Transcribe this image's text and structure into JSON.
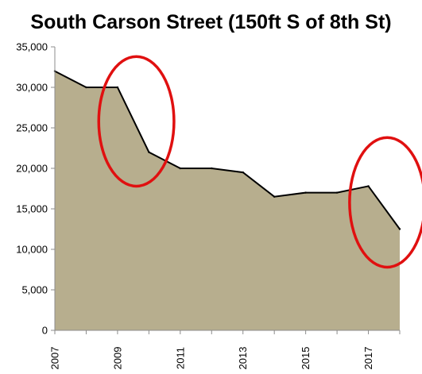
{
  "chart_data": {
    "type": "area",
    "title": "South Carson Street (150ft S of 8th St)",
    "xlabel": "",
    "ylabel": "",
    "x": [
      2007,
      2008,
      2009,
      2010,
      2011,
      2012,
      2013,
      2014,
      2015,
      2016,
      2017,
      2018
    ],
    "x_tick_labels": [
      "2007",
      "2009",
      "2011",
      "2013",
      "2015",
      "2017"
    ],
    "xlim": [
      2007,
      2018
    ],
    "series": [
      {
        "values": [
          32000,
          30000,
          30000,
          22000,
          20000,
          20000,
          19500,
          16500,
          17000,
          17000,
          17800,
          12500
        ]
      }
    ],
    "ylim": [
      0,
      35000
    ],
    "y_ticks": [
      0,
      5000,
      10000,
      15000,
      20000,
      25000,
      30000,
      35000
    ],
    "y_tick_labels": [
      "0",
      "5,000",
      "10,000",
      "15,000",
      "20,000",
      "25,000",
      "30,000",
      "35,000"
    ],
    "grid": false,
    "legend": "none",
    "fill_color": "#b7ae8e",
    "line_color": "#000000",
    "annotations": [
      {
        "shape": "ellipse",
        "color": "#e01010",
        "x_range": [
          2008.4,
          2010.8
        ],
        "y_range": [
          17800,
          33800
        ]
      },
      {
        "shape": "ellipse",
        "color": "#e01010",
        "x_range": [
          2016.4,
          2018.8
        ],
        "y_range": [
          7800,
          23800
        ]
      }
    ]
  }
}
